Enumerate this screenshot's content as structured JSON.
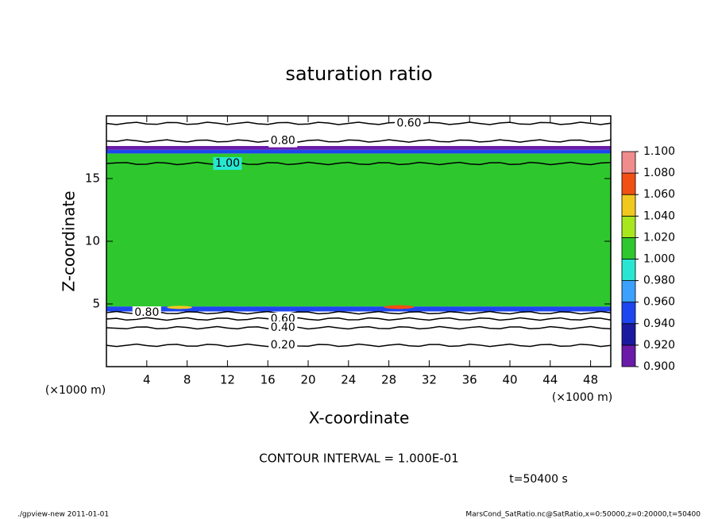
{
  "chart_data": {
    "type": "contour",
    "title": "saturation ratio",
    "x_label": "X-coordinate",
    "y_label": "Z-coordinate",
    "x_unit": "(×1000 m)",
    "y_unit": "(×1000 m)",
    "xlim": [
      0,
      50
    ],
    "xticks": [
      4,
      8,
      12,
      16,
      20,
      24,
      28,
      32,
      36,
      40,
      44,
      48
    ],
    "ylim": [
      0,
      20
    ],
    "yticks": [
      5,
      10,
      15
    ],
    "field": {
      "z_edges": [
        0,
        4.4,
        4.8,
        17.0,
        17.3,
        17.6,
        20
      ],
      "values": [
        0.5,
        0.95,
        1.01,
        0.95,
        0.91,
        0.7
      ]
    },
    "hotspots": [
      {
        "x": [
          27.5,
          30.5
        ],
        "z": [
          4.6,
          4.9
        ],
        "value": 1.07
      },
      {
        "x": [
          6,
          8.5
        ],
        "z": [
          4.6,
          4.85
        ],
        "value": 1.05
      }
    ],
    "contours": [
      {
        "value": 0.6,
        "label": "0.60",
        "z": 19.4
      },
      {
        "value": 0.8,
        "label": "0.80",
        "z": 18.0
      },
      {
        "value": 1.0,
        "label": "1.00",
        "z": 16.2
      },
      {
        "value": 0.8,
        "label": "0.80",
        "z": 4.3
      },
      {
        "value": 0.6,
        "label": "0.60",
        "z": 3.8
      },
      {
        "value": 0.4,
        "label": "0.40",
        "z": 3.1
      },
      {
        "value": 0.2,
        "label": "0.20",
        "z": 1.7
      }
    ],
    "colorbar": {
      "ticks": [
        {
          "value": 0.9,
          "label": "0.900"
        },
        {
          "value": 0.92,
          "label": "0.920"
        },
        {
          "value": 0.94,
          "label": "0.940"
        },
        {
          "value": 0.96,
          "label": "0.960"
        },
        {
          "value": 0.98,
          "label": "0.980"
        },
        {
          "value": 1.0,
          "label": "1.000"
        },
        {
          "value": 1.02,
          "label": "1.020"
        },
        {
          "value": 1.04,
          "label": "1.040"
        },
        {
          "value": 1.06,
          "label": "1.060"
        },
        {
          "value": 1.08,
          "label": "1.080"
        },
        {
          "value": 1.1,
          "label": "1.100"
        }
      ],
      "colors": [
        "#6a1ba8",
        "#1a1aa0",
        "#1e46f0",
        "#3ca0ff",
        "#28e6d2",
        "#2ec82e",
        "#a8e61e",
        "#f0c81e",
        "#f05014",
        "#f08c8c"
      ]
    },
    "annotation": "CONTOUR INTERVAL = 1.000E-01",
    "time_label": "t=50400 s",
    "footer_left": "./gpview-new   2011-01-01",
    "footer_right": "MarsCond_SatRatio.nc@SatRatio,x=0:50000,z=0:20000,t=50400"
  }
}
